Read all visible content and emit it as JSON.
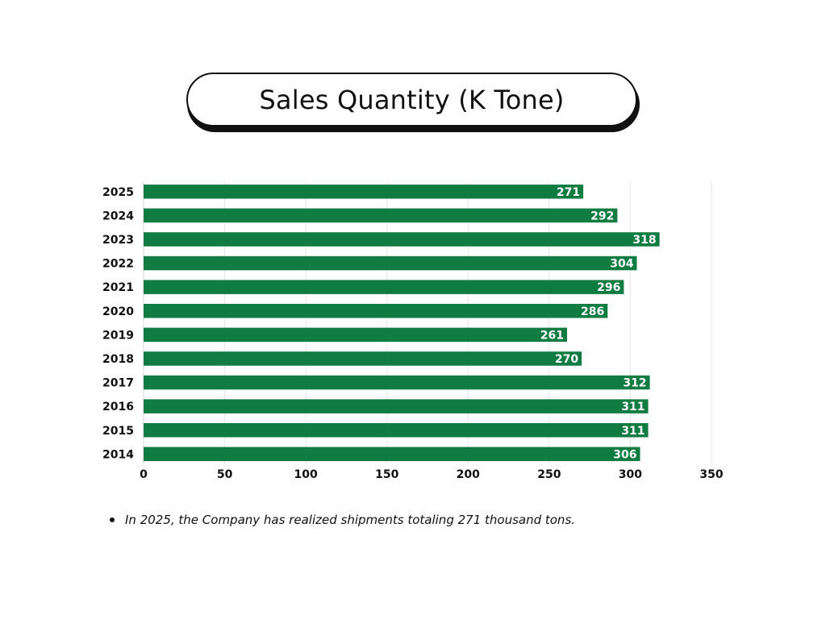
{
  "title": "Sales Quantity (K Tone)",
  "chart_data": {
    "type": "bar",
    "orientation": "horizontal",
    "title": "Sales Quantity (K Tone)",
    "xlabel": "",
    "ylabel": "",
    "categories": [
      "2025",
      "2024",
      "2023",
      "2022",
      "2021",
      "2020",
      "2019",
      "2018",
      "2017",
      "2016",
      "2015",
      "2014"
    ],
    "values": [
      271,
      292,
      318,
      304,
      296,
      286,
      261,
      270,
      312,
      311,
      311,
      306
    ],
    "xlim": [
      0,
      350
    ],
    "xticks": [
      0,
      50,
      100,
      150,
      200,
      250,
      300,
      350
    ],
    "grid": true,
    "legend": "none",
    "bar_color": "#107c41",
    "data_label_color": "#ffffff"
  },
  "note": "In 2025, the Company has realized shipments totaling 271 thousand tons."
}
